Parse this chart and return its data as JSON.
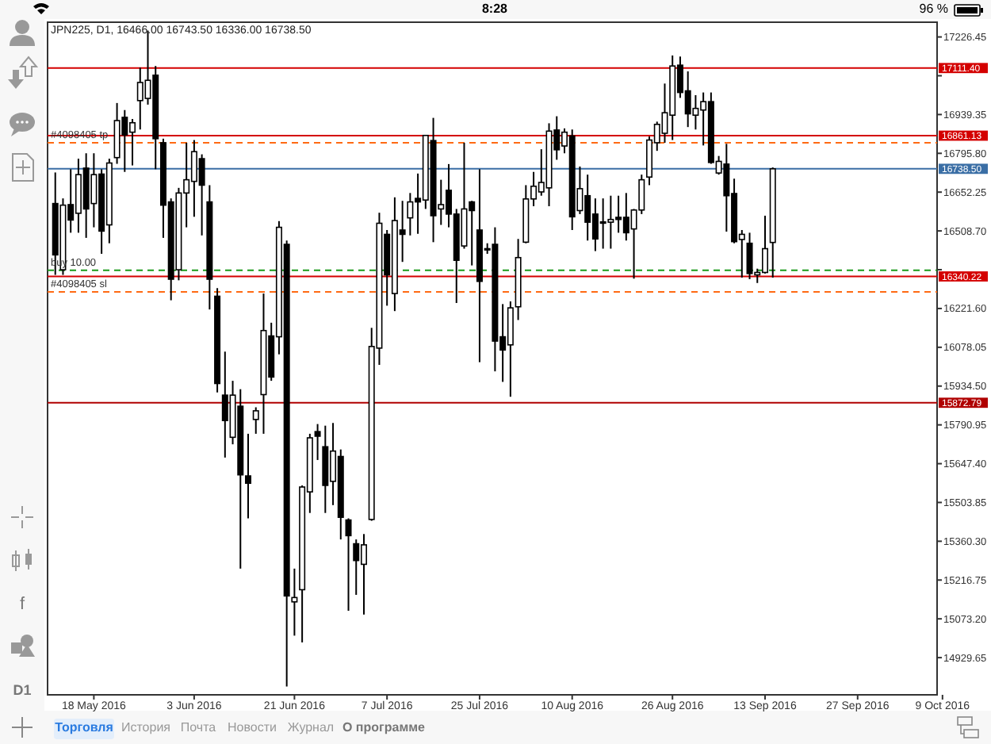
{
  "chart_data": {
    "type": "candlestick",
    "title": "JPN225, D1, 16466.00 16743.50 16336.00 16738.50",
    "color": "#000000",
    "categories": [
      null,
      null,
      null,
      null,
      null,
      "18 May 2016",
      null,
      null,
      null,
      null,
      null,
      null,
      null,
      null,
      null,
      null,
      null,
      null,
      "3 Jun 2016",
      null,
      null,
      null,
      null,
      null,
      null,
      null,
      null,
      null,
      null,
      null,
      null,
      "21 Jun 2016",
      null,
      null,
      null,
      null,
      null,
      null,
      null,
      null,
      null,
      null,
      null,
      "7 Jul 2016",
      null,
      null,
      null,
      null,
      null,
      null,
      null,
      null,
      null,
      null,
      null,
      "25 Jul 2016",
      null,
      null,
      null,
      null,
      null,
      null,
      null,
      null,
      null,
      null,
      null,
      "10 Aug 2016",
      null,
      null,
      null,
      null,
      null,
      null,
      null,
      null,
      null,
      null,
      null,
      null,
      "26 Aug 2016",
      null,
      null,
      null,
      null,
      null,
      null,
      null,
      null,
      null,
      null,
      null,
      "13 Sep 2016",
      null,
      null,
      null,
      null,
      null,
      null,
      null,
      null,
      null,
      null,
      null,
      "27 Sep 2016",
      null,
      null,
      null,
      null,
      null,
      null,
      null,
      null,
      null,
      null,
      "9 Oct 2016"
    ],
    "ohlc": [
      [
        16610,
        16725,
        16346,
        16420
      ],
      [
        16365,
        16629,
        16346,
        16604
      ],
      [
        16606,
        16737,
        16502,
        16549
      ],
      [
        16574,
        16776,
        16502,
        16717
      ],
      [
        16741,
        16796,
        16483,
        16590
      ],
      [
        16610,
        16796,
        16522,
        16717
      ],
      [
        16719,
        16737,
        16424,
        16508
      ],
      [
        16531,
        16776,
        16463,
        16760
      ],
      [
        16780,
        16982,
        16757,
        16917
      ],
      [
        16929,
        16956,
        16727,
        16864
      ],
      [
        16874,
        16923,
        16751,
        16909
      ],
      [
        16991,
        17113,
        16884,
        17058
      ],
      [
        16999,
        17250,
        16976,
        17066
      ],
      [
        17085,
        17119,
        16737,
        16850
      ],
      [
        16835,
        16850,
        16483,
        16604
      ],
      [
        16616,
        16629,
        16252,
        16330
      ],
      [
        16365,
        16668,
        16326,
        16649
      ],
      [
        16649,
        16835,
        16522,
        16698
      ],
      [
        16692,
        16845,
        16561,
        16802
      ],
      [
        16776,
        16792,
        16492,
        16678
      ],
      [
        16616,
        16678,
        16218,
        16330
      ],
      [
        16267,
        16297,
        15911,
        15944
      ],
      [
        15901,
        16062,
        15670,
        15807
      ],
      [
        15745,
        15954,
        15719,
        15901
      ],
      [
        15860,
        15923,
        15259,
        15606
      ],
      [
        15602,
        15758,
        15445,
        15575
      ],
      [
        15811,
        15856,
        15758,
        15843
      ],
      [
        15903,
        16277,
        15758,
        16140
      ],
      [
        16120,
        16169,
        15954,
        15968
      ],
      [
        16117,
        16545,
        16052,
        16522
      ],
      [
        16459,
        16473,
        14823,
        15158
      ],
      [
        15136,
        15259,
        15011,
        15152
      ],
      [
        15181,
        15567,
        14986,
        15561
      ],
      [
        15543,
        15758,
        15465,
        15743
      ],
      [
        15766,
        15794,
        15661,
        15749
      ],
      [
        15710,
        15788,
        15465,
        15567
      ],
      [
        15582,
        15798,
        15494,
        15694
      ],
      [
        15674,
        15700,
        15367,
        15449
      ],
      [
        15439,
        15445,
        15103,
        15381
      ],
      [
        15351,
        15367,
        15162,
        15289
      ],
      [
        15275,
        15387,
        15089,
        15347
      ],
      [
        15441,
        16150,
        15436,
        16081
      ],
      [
        16075,
        16576,
        16013,
        16537
      ],
      [
        16496,
        16512,
        16232,
        16346
      ],
      [
        16277,
        16633,
        16212,
        16547
      ],
      [
        16512,
        16620,
        16394,
        16496
      ],
      [
        16557,
        16649,
        16492,
        16616
      ],
      [
        16629,
        16721,
        16498,
        16616
      ],
      [
        16623,
        16864,
        16590,
        16862
      ],
      [
        16843,
        16927,
        16467,
        16565
      ],
      [
        16590,
        16698,
        16531,
        16606
      ],
      [
        16659,
        16756,
        16522,
        16571
      ],
      [
        16571,
        16590,
        16242,
        16400
      ],
      [
        16453,
        16835,
        16443,
        16590
      ],
      [
        16616,
        16620,
        16381,
        16584
      ],
      [
        16512,
        16737,
        16023,
        16322
      ],
      [
        16443,
        16463,
        16424,
        16441
      ],
      [
        16459,
        16522,
        15989,
        16101
      ],
      [
        16117,
        16238,
        15950,
        16068
      ],
      [
        16087,
        16248,
        15895,
        16224
      ],
      [
        16228,
        16479,
        16179,
        16410
      ],
      [
        16467,
        16678,
        16463,
        16627
      ],
      [
        16627,
        16727,
        16600,
        16674
      ],
      [
        16653,
        16811,
        16639,
        16688
      ],
      [
        16668,
        16907,
        16600,
        16878
      ],
      [
        16882,
        16933,
        16772,
        16809
      ],
      [
        16823,
        16888,
        16796,
        16874
      ],
      [
        16860,
        16884,
        16512,
        16561
      ],
      [
        16584,
        16747,
        16571,
        16665
      ],
      [
        16639,
        16717,
        16473,
        16541
      ],
      [
        16571,
        16629,
        16434,
        16479
      ],
      [
        16542,
        16629,
        16443,
        16541
      ],
      [
        16541,
        16639,
        16443,
        16551
      ],
      [
        16559,
        16639,
        16502,
        16551
      ],
      [
        16559,
        16649,
        16473,
        16502
      ],
      [
        16516,
        16590,
        16332,
        16586
      ],
      [
        16586,
        16717,
        16571,
        16698
      ],
      [
        16708,
        16858,
        16678,
        16845
      ],
      [
        16835,
        16913,
        16805,
        16903
      ],
      [
        16870,
        17054,
        16835,
        16946
      ],
      [
        16937,
        17158,
        16845,
        17119
      ],
      [
        17122,
        17154,
        17001,
        17021
      ],
      [
        17027,
        17099,
        16893,
        16942
      ],
      [
        16937,
        17011,
        16884,
        16962
      ],
      [
        16956,
        17021,
        16825,
        16987
      ],
      [
        16987,
        17021,
        16757,
        16762
      ],
      [
        16723,
        16786,
        16717,
        16766
      ],
      [
        16756,
        16831,
        16506,
        16639
      ],
      [
        16647,
        16702,
        16463,
        16469
      ],
      [
        16477,
        16512,
        16336,
        16496
      ],
      [
        16463,
        16502,
        16330,
        16351
      ],
      [
        16346,
        16369,
        16316,
        16355
      ],
      [
        16355,
        16565,
        16351,
        16443
      ],
      [
        16466,
        16743.5,
        16336,
        16738.5
      ],
      null,
      null,
      null,
      null,
      null,
      null,
      null,
      null,
      null,
      null,
      null,
      null,
      null,
      null,
      null,
      null,
      null,
      null,
      null,
      null,
      null,
      null
    ],
    "ylim": [
      14792,
      17281
    ],
    "yticks": [
      {
        "value": 17226.45,
        "label": "17226.45"
      },
      {
        "value": 17082.9,
        "label": null
      },
      {
        "value": 16939.35,
        "label": "16939.35"
      },
      {
        "value": 16795.8,
        "label": "16795.80"
      },
      {
        "value": 16652.25,
        "label": "16652.25"
      },
      {
        "value": 16508.7,
        "label": "16508.70"
      },
      {
        "value": 16365.15,
        "label": null
      },
      {
        "value": 16221.6,
        "label": "16221.60"
      },
      {
        "value": 16078.05,
        "label": "16078.05"
      },
      {
        "value": 15934.5,
        "label": "15934.50"
      },
      {
        "value": 15790.95,
        "label": "15790.95"
      },
      {
        "value": 15647.4,
        "label": "15647.40"
      },
      {
        "value": 15503.85,
        "label": "15503.85"
      },
      {
        "value": 15360.3,
        "label": "15360.30"
      },
      {
        "value": 15216.75,
        "label": "15216.75"
      },
      {
        "value": 15073.2,
        "label": "15073.20"
      },
      {
        "value": 14929.65,
        "label": "14929.65"
      }
    ],
    "ref_lines": [
      {
        "axis": "y",
        "value": 17111.4,
        "label": "17111.40",
        "color": "#d40000",
        "line_style": "solid"
      },
      {
        "axis": "y",
        "value": 16861.13,
        "label": "16861.13",
        "color": "#d40000",
        "line_style": "solid"
      },
      {
        "axis": "y",
        "value": 16835,
        "label": "#4098405 tp",
        "color": "#ff6a13",
        "line_style": "dashed"
      },
      {
        "axis": "y",
        "value": 16738.5,
        "label": "16738.50",
        "color": "#3a6ea5",
        "line_style": "solid"
      },
      {
        "axis": "y",
        "value": 16363,
        "label": "buy 10.00",
        "color": "#1a9a1a",
        "line_style": "dashed"
      },
      {
        "axis": "y",
        "value": 16340.22,
        "label": "16340.22",
        "color": "#d40000",
        "line_style": "solid"
      },
      {
        "axis": "y",
        "value": 16283,
        "label": "#4098405 sl",
        "color": "#ff6a13",
        "line_style": "dashed"
      },
      {
        "axis": "y",
        "value": 15872.79,
        "label": "15872.79",
        "color": "#b00000",
        "line_style": "solid"
      }
    ],
    "annotations": [
      "8:28",
      "96 %",
      "f",
      "D1",
      "Торговля",
      "История",
      "Почта",
      "Новости",
      "Журнал",
      "О программе"
    ]
  }
}
